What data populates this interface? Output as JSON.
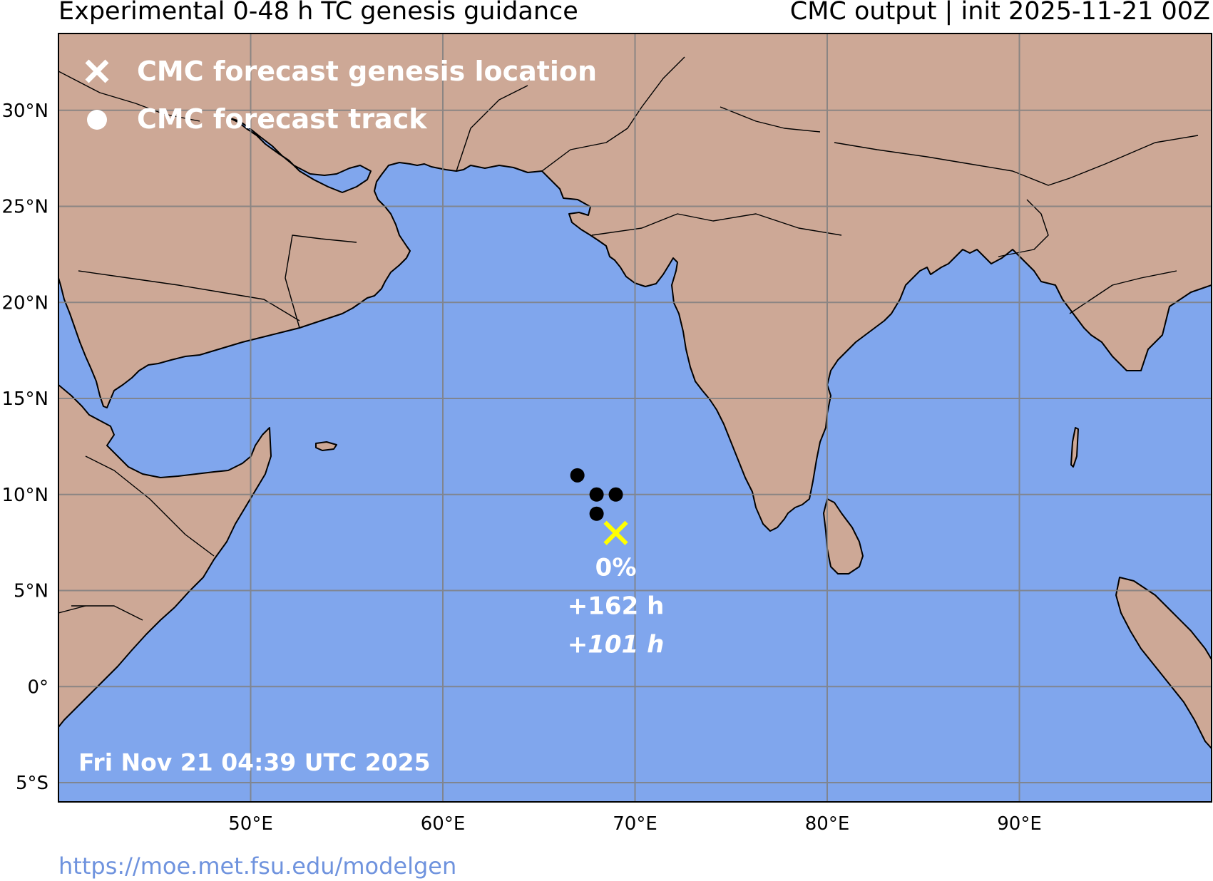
{
  "header": {
    "title_left": "Experimental 0-48 h TC genesis guidance",
    "title_right": "CMC output | init 2025-11-21 00Z"
  },
  "legend": {
    "genesis_label": "CMC forecast genesis location",
    "track_label": "CMC forecast track",
    "genesis_icon": "x-mark-icon",
    "track_icon": "dot-icon"
  },
  "map": {
    "projection": "PlateCarree",
    "lon_range": [
      40,
      100
    ],
    "lat_range": [
      -6,
      34
    ],
    "colors": {
      "ocean": "#80a6ed",
      "land": "#cda896",
      "coast": "#000000",
      "grid": "#808080",
      "genesis_marker": "#ffff00",
      "track_marker": "#000000"
    },
    "lat_ticks": [
      {
        "lat": 30,
        "label": "30°N"
      },
      {
        "lat": 25,
        "label": "25°N"
      },
      {
        "lat": 20,
        "label": "20°N"
      },
      {
        "lat": 15,
        "label": "15°N"
      },
      {
        "lat": 10,
        "label": "10°N"
      },
      {
        "lat": 5,
        "label": "5°N"
      },
      {
        "lat": 0,
        "label": "0°"
      },
      {
        "lat": -5,
        "label": "5°S"
      }
    ],
    "lon_ticks": [
      {
        "lon": 50,
        "label": "50°E"
      },
      {
        "lon": 60,
        "label": "60°E"
      },
      {
        "lon": 70,
        "label": "70°E"
      },
      {
        "lon": 80,
        "label": "80°E"
      },
      {
        "lon": 90,
        "label": "90°E"
      }
    ],
    "genesis": {
      "lon": 69,
      "lat": 8
    },
    "track": [
      {
        "lon": 67,
        "lat": 11
      },
      {
        "lon": 68,
        "lat": 10
      },
      {
        "lon": 69,
        "lat": 10
      },
      {
        "lon": 68,
        "lat": 9
      }
    ],
    "annotation": {
      "probability": "0%",
      "lead_time": "+162 h",
      "lead_time_italic": "+101 h"
    },
    "timestamp": "Fri Nov 21 04:39 UTC 2025"
  },
  "footer": {
    "url": "https://moe.met.fsu.edu/modelgen"
  }
}
